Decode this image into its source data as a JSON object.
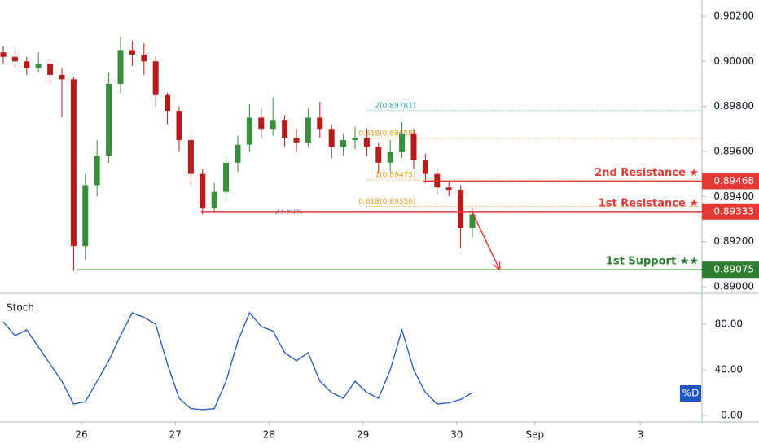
{
  "chart_data": {
    "type": "candlestick",
    "x": [
      -20,
      -17,
      -14,
      -11,
      -8,
      -5,
      -2,
      1,
      4,
      7,
      10,
      13,
      16,
      19,
      22,
      25,
      28,
      31,
      34,
      37,
      40,
      43,
      46,
      49,
      52,
      55,
      58,
      61,
      64,
      67,
      70,
      73,
      76,
      79,
      82,
      85,
      88,
      91,
      94,
      97,
      100
    ],
    "open": [
      0.9004,
      0.9002,
      0.9,
      0.8997,
      0.8999,
      0.8994,
      0.8992,
      0.8918,
      0.8945,
      0.8958,
      0.899,
      0.9005,
      0.9003,
      0.9,
      0.8985,
      0.8978,
      0.8965,
      0.895,
      0.8935,
      0.8942,
      0.8955,
      0.8963,
      0.8975,
      0.897,
      0.8974,
      0.8966,
      0.8964,
      0.8975,
      0.897,
      0.8962,
      0.8965,
      0.8966,
      0.8962,
      0.8955,
      0.896,
      0.8968,
      0.8956,
      0.895,
      0.8944,
      0.8943,
      0.8926
    ],
    "high": [
      0.9007,
      0.9005,
      0.9002,
      0.9004,
      0.9001,
      0.8997,
      0.8993,
      0.895,
      0.8965,
      0.8995,
      0.9011,
      0.9009,
      0.9008,
      0.9002,
      0.8986,
      0.898,
      0.8967,
      0.8952,
      0.8946,
      0.8958,
      0.8967,
      0.8981,
      0.8979,
      0.8984,
      0.8976,
      0.897,
      0.8979,
      0.8982,
      0.8972,
      0.8968,
      0.8971,
      0.897,
      0.8964,
      0.8965,
      0.8973,
      0.897,
      0.8959,
      0.8952,
      0.8947,
      0.8945,
      0.8935
    ],
    "low": [
      0.8999,
      0.8997,
      0.8994,
      0.8995,
      0.899,
      0.8975,
      0.8907,
      0.8912,
      0.894,
      0.8955,
      0.8986,
      0.8998,
      0.8994,
      0.898,
      0.8972,
      0.896,
      0.8945,
      0.8932,
      0.8933,
      0.8938,
      0.8951,
      0.896,
      0.8966,
      0.8967,
      0.8962,
      0.896,
      0.8962,
      0.8966,
      0.8957,
      0.8958,
      0.8961,
      0.8958,
      0.895,
      0.8951,
      0.8957,
      0.8952,
      0.8946,
      0.8941,
      0.894,
      0.8917,
      0.8922
    ],
    "close": [
      0.9002,
      0.9,
      0.8997,
      0.8999,
      0.8994,
      0.8992,
      0.8918,
      0.8945,
      0.8958,
      0.899,
      0.9005,
      0.9003,
      0.9,
      0.8985,
      0.8978,
      0.8965,
      0.895,
      0.8935,
      0.8942,
      0.8955,
      0.8963,
      0.8975,
      0.897,
      0.8974,
      0.8966,
      0.8964,
      0.8975,
      0.897,
      0.8962,
      0.8965,
      0.8966,
      0.8962,
      0.8955,
      0.896,
      0.8968,
      0.8956,
      0.895,
      0.8944,
      0.8943,
      0.8926,
      0.8932
    ],
    "up_color": "#388e3c",
    "down_color": "#b71c1c",
    "xlim": [
      -20.83,
      158.75
    ],
    "xticks": [
      {
        "value": 0,
        "label": "26"
      },
      {
        "value": 24,
        "label": "27"
      },
      {
        "value": 48,
        "label": "28"
      },
      {
        "value": 72,
        "label": "29"
      },
      {
        "value": 96,
        "label": "30"
      },
      {
        "value": 116,
        "label": "Sep"
      },
      {
        "value": 143,
        "label": "3"
      }
    ],
    "ylim": [
      0.88989,
      0.90272
    ],
    "yticks": [
      {
        "value": 0.902,
        "label": "0.90200"
      },
      {
        "value": 0.9,
        "label": "0.90000"
      },
      {
        "value": 0.898,
        "label": "0.89800"
      },
      {
        "value": 0.896,
        "label": "0.89600"
      },
      {
        "value": 0.894,
        "label": "0.89400"
      },
      {
        "value": 0.892,
        "label": "0.89200"
      },
      {
        "value": 0.89,
        "label": "0.89000"
      }
    ],
    "levels": [
      {
        "name": "2nd Resistance ★",
        "value": 0.89468,
        "label": "0.89468",
        "from": 87.5,
        "color": "#e53935"
      },
      {
        "name": "1st Resistance ★",
        "value": 0.89333,
        "label": "0.89333",
        "from": 30.6,
        "color": "#e53935"
      },
      {
        "name": "1st Support ★★",
        "value": 0.89075,
        "label": "0.89075",
        "from": -1,
        "color": "#2e7d32"
      }
    ],
    "fib_lines": [
      {
        "label": "2(0.89781)",
        "value": 0.89781,
        "from": 73,
        "color": "#26a69a"
      },
      {
        "label": "0.618(0.89658)",
        "value": 0.89658,
        "from": 73,
        "color": "#ef9a1a"
      },
      {
        "label": "1(0.89473)",
        "value": 0.89473,
        "from": 73,
        "color": "#ef9a1a"
      },
      {
        "label": "0.618(0.89356)",
        "value": 0.89356,
        "from": 73,
        "color": "#ef9a1a"
      }
    ],
    "fib_retracement": {
      "label": "23.60%",
      "value": 0.89333,
      "x": 53
    },
    "arrow": {
      "x": [
        100,
        107
      ],
      "y": [
        0.8933,
        0.89075
      ],
      "color": "#e53935"
    },
    "stoch": {
      "title": "Stoch",
      "badge": "%D",
      "color": "#1e54c4",
      "values": [
        82,
        70,
        75,
        60,
        45,
        30,
        10,
        12,
        30,
        48,
        70,
        90,
        86,
        80,
        45,
        15,
        6,
        5,
        6,
        30,
        65,
        90,
        78,
        74,
        55,
        48,
        55,
        30,
        20,
        15,
        30,
        20,
        15,
        40,
        75,
        40,
        20,
        10,
        11,
        14,
        20
      ],
      "ylim": [
        -5.7,
        105
      ],
      "yticks": [
        {
          "value": 80,
          "label": "80.00"
        },
        {
          "value": 40,
          "label": "40.00"
        },
        {
          "value": 0,
          "label": "0.00"
        }
      ]
    }
  }
}
